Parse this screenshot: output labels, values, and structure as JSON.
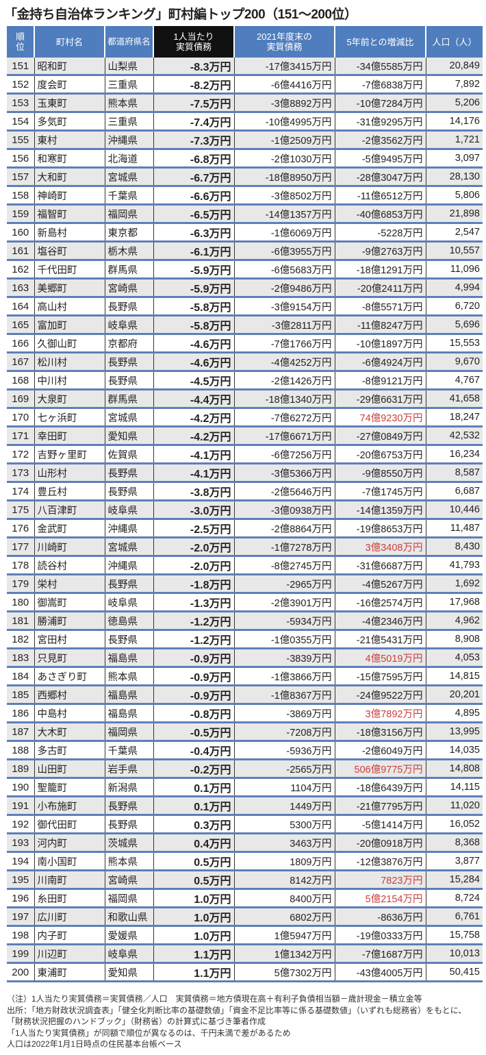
{
  "title": "「金持ち自治体ランキング」町村編トップ200（151〜200位）",
  "colors": {
    "header": "#4f7dbd",
    "highlight_header": "#111111",
    "row_alt": "#e8e8e8",
    "row_line": "#5d7fba",
    "positive_change": "#c8413e"
  },
  "table": {
    "headers": [
      "順位",
      "町村名",
      "都道府県名",
      "1人当たり実質債務",
      "2021年度末の実質債務",
      "5年前との増減比",
      "人口（人）"
    ],
    "header_lines": [
      [
        "順",
        "位"
      ],
      [
        "町村名"
      ],
      [
        "都道",
        "府県名"
      ],
      [
        "1人当たり",
        "実質債務"
      ],
      [
        "2021年度末の",
        "実質債務"
      ],
      [
        "5年前との増減比"
      ],
      [
        "人口（人）"
      ]
    ],
    "rows": [
      [
        "151",
        "昭和町",
        "山梨県",
        "-8.3万円",
        "-17億3415万円",
        "-34億5585万円",
        "20,849"
      ],
      [
        "152",
        "度会町",
        "三重県",
        "-8.2万円",
        "-6億4416万円",
        "-7億6838万円",
        "7,892"
      ],
      [
        "153",
        "玉東町",
        "熊本県",
        "-7.5万円",
        "-3億8892万円",
        "-10億7284万円",
        "5,206"
      ],
      [
        "154",
        "多気町",
        "三重県",
        "-7.4万円",
        "-10億4995万円",
        "-31億9295万円",
        "14,176"
      ],
      [
        "155",
        "東村",
        "沖縄県",
        "-7.3万円",
        "-1億2509万円",
        "-2億3562万円",
        "1,721"
      ],
      [
        "156",
        "和寒町",
        "北海道",
        "-6.8万円",
        "-2億1030万円",
        "-5億9495万円",
        "3,097"
      ],
      [
        "157",
        "大和町",
        "宮城県",
        "-6.7万円",
        "-18億8950万円",
        "-28億3047万円",
        "28,130"
      ],
      [
        "158",
        "神崎町",
        "千葉県",
        "-6.6万円",
        "-3億8502万円",
        "-11億6512万円",
        "5,806"
      ],
      [
        "159",
        "福智町",
        "福岡県",
        "-6.5万円",
        "-14億1357万円",
        "-40億6853万円",
        "21,898"
      ],
      [
        "160",
        "新島村",
        "東京都",
        "-6.3万円",
        "-1億6069万円",
        "-5228万円",
        "2,547"
      ],
      [
        "161",
        "塩谷町",
        "栃木県",
        "-6.1万円",
        "-6億3955万円",
        "-9億2763万円",
        "10,557"
      ],
      [
        "162",
        "千代田町",
        "群馬県",
        "-5.9万円",
        "-6億5683万円",
        "-18億1291万円",
        "11,096"
      ],
      [
        "163",
        "美郷町",
        "宮崎県",
        "-5.9万円",
        "-2億9486万円",
        "-20億2411万円",
        "4,994"
      ],
      [
        "164",
        "高山村",
        "長野県",
        "-5.8万円",
        "-3億9154万円",
        "-8億5571万円",
        "6,720"
      ],
      [
        "165",
        "富加町",
        "岐阜県",
        "-5.8万円",
        "-3億2811万円",
        "-11億8247万円",
        "5,696"
      ],
      [
        "166",
        "久御山町",
        "京都府",
        "-4.6万円",
        "-7億1766万円",
        "-10億1897万円",
        "15,553"
      ],
      [
        "167",
        "松川村",
        "長野県",
        "-4.6万円",
        "-4億4252万円",
        "-6億4924万円",
        "9,670"
      ],
      [
        "168",
        "中川村",
        "長野県",
        "-4.5万円",
        "-2億1426万円",
        "-8億9121万円",
        "4,767"
      ],
      [
        "169",
        "大泉町",
        "群馬県",
        "-4.4万円",
        "-18億1340万円",
        "-29億6631万円",
        "41,658"
      ],
      [
        "170",
        "七ヶ浜町",
        "宮城県",
        "-4.2万円",
        "-7億6272万円",
        "74億9230万円",
        "18,247"
      ],
      [
        "171",
        "幸田町",
        "愛知県",
        "-4.2万円",
        "-17億6671万円",
        "-27億0849万円",
        "42,532"
      ],
      [
        "172",
        "吉野ヶ里町",
        "佐賀県",
        "-4.1万円",
        "-6億7256万円",
        "-20億6753万円",
        "16,234"
      ],
      [
        "173",
        "山形村",
        "長野県",
        "-4.1万円",
        "-3億5366万円",
        "-9億8550万円",
        "8,587"
      ],
      [
        "174",
        "豊丘村",
        "長野県",
        "-3.8万円",
        "-2億5646万円",
        "-7億1745万円",
        "6,687"
      ],
      [
        "175",
        "八百津町",
        "岐阜県",
        "-3.0万円",
        "-3億0938万円",
        "-14億1359万円",
        "10,446"
      ],
      [
        "176",
        "金武町",
        "沖縄県",
        "-2.5万円",
        "-2億8864万円",
        "-19億8653万円",
        "11,487"
      ],
      [
        "177",
        "川崎町",
        "宮城県",
        "-2.0万円",
        "-1億7278万円",
        "3億3408万円",
        "8,430"
      ],
      [
        "178",
        "読谷村",
        "沖縄県",
        "-2.0万円",
        "-8億2745万円",
        "-31億6687万円",
        "41,793"
      ],
      [
        "179",
        "栄村",
        "長野県",
        "-1.8万円",
        "-2965万円",
        "-4億5267万円",
        "1,692"
      ],
      [
        "180",
        "御嵩町",
        "岐阜県",
        "-1.3万円",
        "-2億3901万円",
        "-16億2574万円",
        "17,968"
      ],
      [
        "181",
        "勝浦町",
        "徳島県",
        "-1.2万円",
        "-5934万円",
        "-4億2346万円",
        "4,962"
      ],
      [
        "182",
        "宮田村",
        "長野県",
        "-1.2万円",
        "-1億0355万円",
        "-21億5431万円",
        "8,908"
      ],
      [
        "183",
        "只見町",
        "福島県",
        "-0.9万円",
        "-3839万円",
        "4億5019万円",
        "4,053"
      ],
      [
        "184",
        "あさぎり町",
        "熊本県",
        "-0.9万円",
        "-1億3866万円",
        "-15億7595万円",
        "14,815"
      ],
      [
        "185",
        "西郷村",
        "福島県",
        "-0.9万円",
        "-1億8367万円",
        "-24億9522万円",
        "20,201"
      ],
      [
        "186",
        "中島村",
        "福島県",
        "-0.8万円",
        "-3869万円",
        "3億7892万円",
        "4,895"
      ],
      [
        "187",
        "大木町",
        "福岡県",
        "-0.5万円",
        "-7208万円",
        "-18億3156万円",
        "13,995"
      ],
      [
        "188",
        "多古町",
        "千葉県",
        "-0.4万円",
        "-5936万円",
        "-2億6049万円",
        "14,035"
      ],
      [
        "189",
        "山田町",
        "岩手県",
        "-0.2万円",
        "-2565万円",
        "506億9775万円",
        "14,808"
      ],
      [
        "190",
        "聖籠町",
        "新潟県",
        "0.1万円",
        "1104万円",
        "-18億6439万円",
        "14,115"
      ],
      [
        "191",
        "小布施町",
        "長野県",
        "0.1万円",
        "1449万円",
        "-21億7795万円",
        "11,020"
      ],
      [
        "192",
        "御代田町",
        "長野県",
        "0.3万円",
        "5300万円",
        "-5億1414万円",
        "16,052"
      ],
      [
        "193",
        "河内町",
        "茨城県",
        "0.4万円",
        "3463万円",
        "-20億0918万円",
        "8,368"
      ],
      [
        "194",
        "南小国町",
        "熊本県",
        "0.5万円",
        "1809万円",
        "-12億3876万円",
        "3,877"
      ],
      [
        "195",
        "川南町",
        "宮崎県",
        "0.5万円",
        "8142万円",
        "7823万円",
        "15,284"
      ],
      [
        "196",
        "糸田町",
        "福岡県",
        "1.0万円",
        "8400万円",
        "5億2154万円",
        "8,724"
      ],
      [
        "197",
        "広川町",
        "和歌山県",
        "1.0万円",
        "6802万円",
        "-8636万円",
        "6,761"
      ],
      [
        "198",
        "内子町",
        "愛媛県",
        "1.0万円",
        "1億5947万円",
        "-19億0333万円",
        "15,758"
      ],
      [
        "199",
        "川辺町",
        "岐阜県",
        "1.1万円",
        "1億1342万円",
        "-7億1687万円",
        "10,013"
      ],
      [
        "200",
        "東浦町",
        "愛知県",
        "1.1万円",
        "5億7302万円",
        "-43億4005万円",
        "50,415"
      ]
    ]
  },
  "notes": [
    "（注）1人当たり実質債務＝実質債務／人口　実質債務＝地方債現在高＋有利子負債相当額－歳計現金－積立金等",
    "出所：「地方財政状況調査表」「健全化判断比率の基礎数値」「資金不足比率等に係る基礎数値」（いずれも総務省）をもとに、",
    "「財務状況把握のハンドブック」（財務省）の計算式に基づき筆者作成",
    "「1人当たり実質債務」が同額で順位が異なるのは、千円未満で差があるため",
    "人口は2022年1月1日時点の住民基本台帳ベース"
  ]
}
